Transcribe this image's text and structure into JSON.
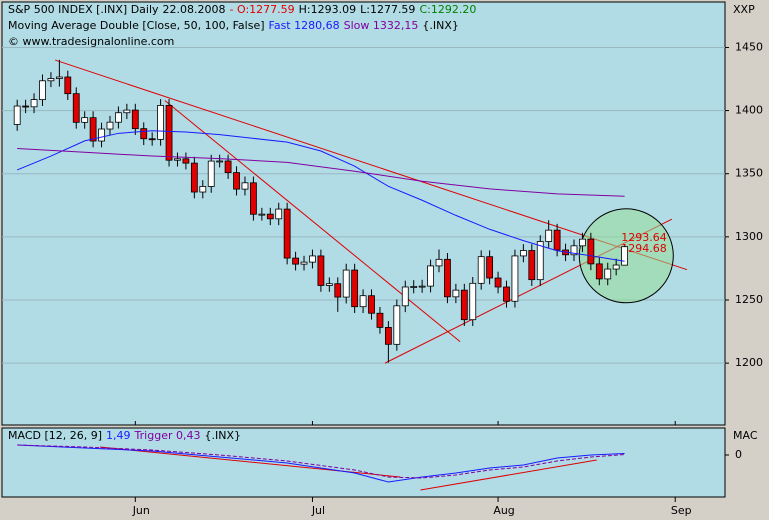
{
  "chart_data": [
    {
      "type": "candlestick",
      "header": {
        "title": "S&P 500 INDEX [.INX]  Daily",
        "date": "22.08.2008",
        "open": "- O:1277.59",
        "high": "H:1293.09",
        "low": "L:1277.59",
        "close": "C:1292.20"
      },
      "indicator": {
        "label": "Moving Average Double [Close, 50, 100, False]",
        "source": "{.INX}"
      },
      "copyright": "© www.tradesignalonline.com",
      "corner_label": "XXP",
      "x": [
        0,
        1,
        2,
        3,
        4,
        5,
        6,
        7,
        8,
        9,
        10,
        11,
        12,
        13,
        14,
        15,
        16,
        17,
        18,
        19,
        20,
        21,
        22,
        23,
        24,
        25,
        26,
        27,
        28,
        29,
        30,
        31,
        32,
        33,
        34,
        35,
        36,
        37,
        38,
        39,
        40,
        41,
        42,
        43,
        44,
        45,
        46,
        47,
        48,
        49,
        50,
        51,
        52,
        53,
        54,
        55,
        56,
        57,
        58,
        59,
        60,
        61,
        62,
        63,
        64,
        65,
        66,
        67,
        68,
        69,
        70,
        71,
        72
      ],
      "open": [
        1389,
        1403.6,
        1403.0,
        1408.7,
        1423.6,
        1425.4,
        1426.6,
        1413.4,
        1390.7,
        1394.4,
        1375.9,
        1385.4,
        1390.8,
        1398.3,
        1400.4,
        1385.7,
        1377.7,
        1377.2,
        1404.1,
        1360.7,
        1361.8,
        1358.4,
        1335.5,
        1339.9,
        1360.0,
        1360.1,
        1350.9,
        1337.8,
        1342.8,
        1317.9,
        1318.0,
        1314.3,
        1322.0,
        1283.2,
        1278.4,
        1280.0,
        1284.9,
        1261.5,
        1262.9,
        1252.3,
        1273.7,
        1244.7,
        1253.4,
        1239.5,
        1228.3,
        1214.9,
        1245.4,
        1260.3,
        1260.7,
        1261.0,
        1277.0,
        1282.2,
        1252.5,
        1257.8,
        1234.4,
        1263.2,
        1284.3,
        1267.4,
        1260.3,
        1249.0,
        1284.9,
        1289.2,
        1266.1,
        1296.3,
        1305.3,
        1289.6,
        1285.8,
        1292.9,
        1298.2,
        1278.6,
        1266.7,
        1274.5,
        1277.59
      ],
      "high": [
        1408.6,
        1408.6,
        1413.7,
        1428.6,
        1430.4,
        1440.2,
        1431.6,
        1418.4,
        1399.4,
        1399.4,
        1390.4,
        1395.8,
        1403.3,
        1405.4,
        1405.4,
        1390.7,
        1382.7,
        1409.1,
        1409.1,
        1366.8,
        1366.8,
        1363.4,
        1344.9,
        1365,
        1365.1,
        1365.1,
        1355.9,
        1347.8,
        1347.8,
        1323,
        1323,
        1327,
        1327,
        1288.2,
        1285,
        1289.9,
        1289.9,
        1267.9,
        1267.9,
        1278.7,
        1278.7,
        1258.4,
        1258.4,
        1244.5,
        1233.3,
        1250.4,
        1265.3,
        1265.7,
        1266,
        1282,
        1290,
        1287.2,
        1262.8,
        1262.8,
        1268.2,
        1289.3,
        1289.3,
        1272.4,
        1265.3,
        1289.9,
        1294.2,
        1294.2,
        1301.3,
        1313.2,
        1310.3,
        1294.6,
        1297.9,
        1303.2,
        1303.2,
        1283.6,
        1279.5,
        1282.7,
        1293.09
      ],
      "low": [
        1384,
        1398,
        1398,
        1403.7,
        1418.6,
        1419,
        1408.4,
        1385.7,
        1385.7,
        1370.9,
        1370.9,
        1380.4,
        1385.8,
        1393.3,
        1380.7,
        1372.7,
        1372.2,
        1372.2,
        1355.7,
        1355.7,
        1353.4,
        1330.5,
        1330.5,
        1334.9,
        1355,
        1345.9,
        1332.8,
        1332.8,
        1312.9,
        1312.9,
        1309.3,
        1309.3,
        1278.2,
        1273.4,
        1273.4,
        1275,
        1256.5,
        1256.5,
        1240.6,
        1247.3,
        1239.7,
        1239.7,
        1234.5,
        1223.3,
        1200.4,
        1209.9,
        1240.4,
        1255.3,
        1255.7,
        1256,
        1272,
        1247.5,
        1247.5,
        1229.4,
        1229.4,
        1258.2,
        1262.4,
        1255.3,
        1244,
        1244,
        1279.9,
        1261.1,
        1261.1,
        1291.3,
        1284.6,
        1280.8,
        1280.8,
        1287.9,
        1273.6,
        1261.7,
        1261.7,
        1269.5,
        1277.59
      ],
      "close": [
        1403.6,
        1403.0,
        1408.7,
        1423.6,
        1425.4,
        1426.6,
        1413.4,
        1390.7,
        1394.4,
        1375.9,
        1385.4,
        1390.8,
        1398.3,
        1400.4,
        1385.7,
        1377.7,
        1377.2,
        1404.1,
        1360.7,
        1361.8,
        1358.4,
        1335.5,
        1339.9,
        1360.0,
        1360.1,
        1350.9,
        1337.8,
        1342.8,
        1317.9,
        1318.0,
        1314.3,
        1322.0,
        1283.2,
        1278.4,
        1280.0,
        1284.9,
        1261.5,
        1262.9,
        1252.3,
        1273.7,
        1244.7,
        1253.4,
        1239.5,
        1228.3,
        1214.9,
        1245.4,
        1260.3,
        1260.7,
        1261.0,
        1277.0,
        1282.2,
        1252.5,
        1257.8,
        1234.4,
        1263.2,
        1284.3,
        1267.4,
        1260.3,
        1249.0,
        1284.9,
        1289.2,
        1266.1,
        1296.3,
        1305.3,
        1289.6,
        1285.8,
        1292.9,
        1298.2,
        1278.6,
        1266.7,
        1274.5,
        1277.7,
        1292.2
      ],
      "up_color": "#ffffff",
      "down_color": "#e00000",
      "series": [
        {
          "name": "Fast 1280,68",
          "color": "#1a1aff",
          "x": [
            0,
            4,
            8,
            12,
            16,
            20,
            24,
            28,
            32,
            36,
            40,
            44,
            48,
            52,
            56,
            60,
            64,
            68,
            72
          ],
          "values": [
            1353,
            1364,
            1376,
            1382,
            1384,
            1383,
            1381,
            1378,
            1375,
            1368,
            1356,
            1340,
            1329,
            1317,
            1306,
            1297,
            1289,
            1285,
            1280.68
          ]
        },
        {
          "name": "Slow 1332,15",
          "color": "#8000a0",
          "x": [
            0,
            8,
            16,
            24,
            32,
            40,
            48,
            56,
            64,
            72
          ],
          "values": [
            1370,
            1367,
            1364,
            1362,
            1359,
            1352,
            1344,
            1338,
            1334,
            1332.15
          ]
        }
      ],
      "trendlines": [
        {
          "x": [
            4.5,
            79.4
          ],
          "values": [
            1440,
            1274
          ]
        },
        {
          "x": [
            17.5,
            52.5
          ],
          "values": [
            1408,
            1217
          ]
        },
        {
          "x": [
            43.6,
            77.6
          ],
          "values": [
            1200,
            1314
          ]
        }
      ],
      "circle": {
        "x": 72.2,
        "value": 1285,
        "labels": [
          "1293.64",
          "1294.68"
        ]
      },
      "xlim": [
        -1.8,
        83.9
      ],
      "xticks": [
        {
          "value": 14,
          "label": "Jun"
        },
        {
          "value": 35,
          "label": "Jul"
        },
        {
          "value": 57,
          "label": "Aug"
        },
        {
          "value": 78,
          "label": "Sep"
        }
      ],
      "ylim": [
        1151,
        1486
      ],
      "yticks": [
        1200,
        1250,
        1300,
        1350,
        1400,
        1450
      ],
      "grid": true
    },
    {
      "type": "line",
      "title": "MACD [12, 26, 9]",
      "source": "{.INX}",
      "corner_label": "MAC",
      "series": [
        {
          "name": "1,49",
          "color": "#1a1aff",
          "x": [
            0,
            8,
            16,
            24,
            32,
            40,
            44,
            48,
            52,
            56,
            60,
            64,
            68,
            72
          ],
          "values": [
            10,
            7,
            4,
            -2,
            -8,
            -18,
            -27,
            -22,
            -18,
            -13,
            -10,
            -3,
            0,
            1.49
          ]
        },
        {
          "name": "Trigger 0,43",
          "color": "#8000a0",
          "dashed": true,
          "x": [
            0,
            8,
            16,
            24,
            32,
            40,
            44,
            48,
            52,
            56,
            60,
            64,
            68,
            72
          ],
          "values": [
            10,
            8,
            5,
            0,
            -6,
            -15,
            -22,
            -23,
            -20,
            -15,
            -12,
            -6,
            -2,
            0.43
          ]
        }
      ],
      "trendlines": [
        {
          "x": [
            9.8,
            45.4
          ],
          "values": [
            8,
            -22
          ]
        },
        {
          "x": [
            47.8,
            68.7
          ],
          "values": [
            -35,
            -5
          ]
        }
      ],
      "xlim": [
        -1.8,
        83.9
      ],
      "ylim": [
        -42,
        27
      ],
      "yticks": [
        0
      ]
    }
  ]
}
